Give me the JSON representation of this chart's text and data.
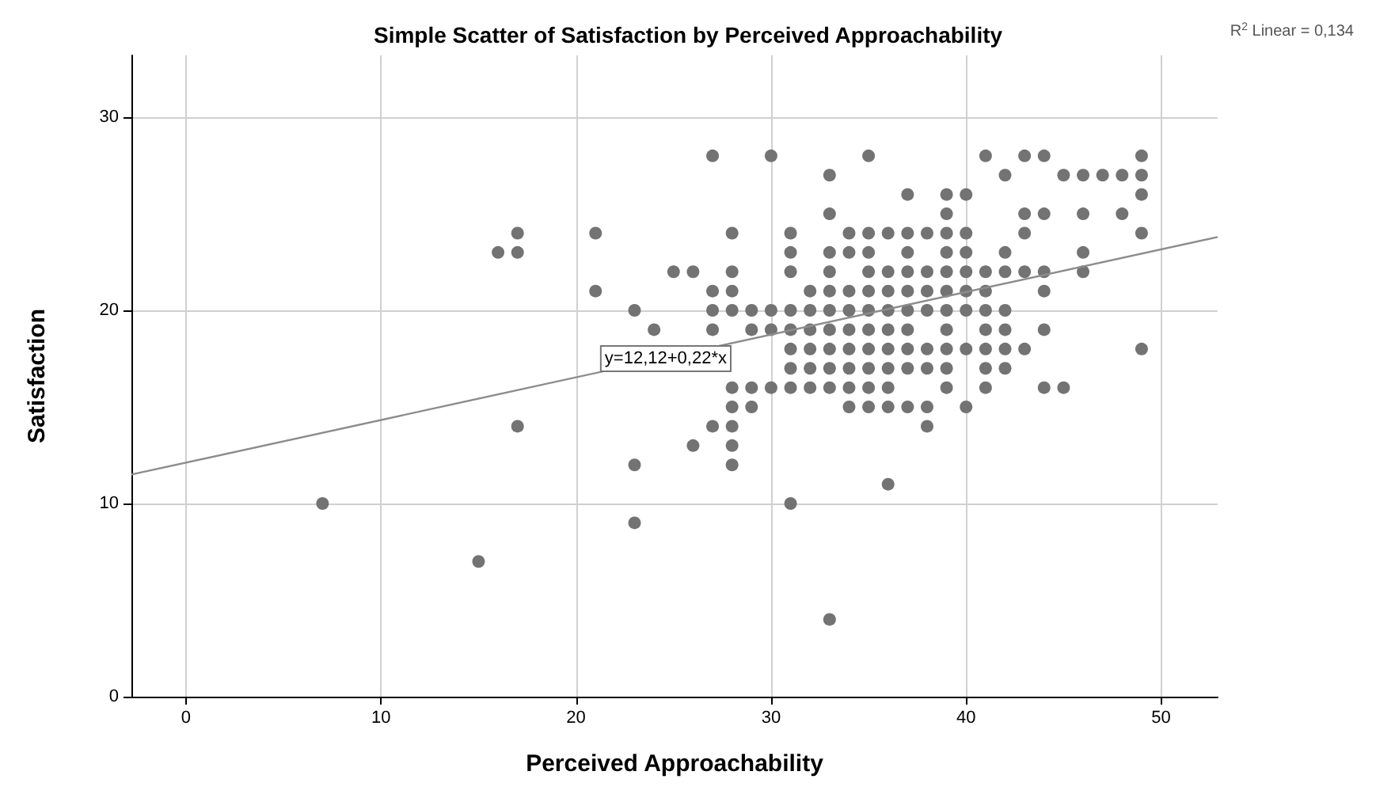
{
  "chart_data": {
    "type": "scatter",
    "title": "Simple Scatter of Satisfaction by Perceived Approachability",
    "xlabel": "Perceived Approachability",
    "ylabel": "Satisfaction",
    "xlim": [
      -2.8,
      52.9
    ],
    "xticks": [
      0,
      10,
      20,
      30,
      40,
      50
    ],
    "ylim": [
      0,
      33.2
    ],
    "yticks": [
      0,
      10,
      20,
      30
    ],
    "grid": true,
    "marker": "circle",
    "series": [
      {
        "type": "scatter",
        "color": "#737373",
        "x": [
          7,
          15,
          16,
          17,
          17,
          17,
          21,
          21,
          23,
          23,
          23,
          24,
          25,
          26,
          26,
          27,
          27,
          27,
          27,
          27,
          28,
          28,
          28,
          28,
          28,
          28,
          28,
          28,
          28,
          29,
          29,
          29,
          29,
          30,
          30,
          30,
          30,
          31,
          31,
          31,
          31,
          31,
          31,
          31,
          31,
          31,
          32,
          32,
          32,
          32,
          32,
          32,
          33,
          33,
          33,
          33,
          33,
          33,
          33,
          33,
          33,
          33,
          33,
          34,
          34,
          34,
          34,
          34,
          34,
          34,
          34,
          34,
          35,
          35,
          35,
          35,
          35,
          35,
          35,
          35,
          35,
          35,
          35,
          36,
          36,
          36,
          36,
          36,
          36,
          36,
          36,
          36,
          36,
          37,
          37,
          37,
          37,
          37,
          37,
          37,
          37,
          37,
          37,
          38,
          38,
          38,
          38,
          38,
          38,
          38,
          38,
          39,
          39,
          39,
          39,
          39,
          39,
          39,
          39,
          39,
          39,
          39,
          40,
          40,
          40,
          40,
          40,
          40,
          40,
          40,
          41,
          41,
          41,
          41,
          41,
          41,
          41,
          41,
          42,
          42,
          42,
          42,
          42,
          42,
          42,
          43,
          43,
          43,
          43,
          43,
          44,
          44,
          44,
          44,
          44,
          44,
          45,
          45,
          46,
          46,
          46,
          46,
          47,
          48,
          48,
          49,
          49,
          49,
          49,
          49
        ],
        "values": [
          10,
          7,
          23,
          24,
          23,
          14,
          24,
          21,
          20,
          12,
          9,
          19,
          22,
          22,
          13,
          28,
          21,
          20,
          19,
          14,
          24,
          22,
          21,
          20,
          16,
          15,
          14,
          13,
          12,
          20,
          19,
          16,
          15,
          28,
          20,
          19,
          16,
          24,
          23,
          22,
          20,
          19,
          18,
          17,
          16,
          10,
          21,
          20,
          19,
          18,
          17,
          16,
          27,
          25,
          23,
          22,
          21,
          20,
          19,
          18,
          17,
          16,
          4,
          24,
          23,
          21,
          20,
          19,
          18,
          17,
          16,
          15,
          28,
          24,
          23,
          22,
          21,
          20,
          19,
          18,
          17,
          16,
          15,
          24,
          22,
          21,
          20,
          19,
          18,
          17,
          16,
          15,
          11,
          26,
          24,
          23,
          22,
          21,
          20,
          19,
          18,
          17,
          15,
          24,
          22,
          21,
          20,
          18,
          17,
          15,
          14,
          26,
          25,
          24,
          23,
          22,
          21,
          20,
          19,
          18,
          17,
          16,
          26,
          24,
          23,
          22,
          21,
          20,
          18,
          15,
          28,
          22,
          21,
          20,
          19,
          18,
          17,
          16,
          27,
          23,
          22,
          20,
          19,
          18,
          17,
          28,
          25,
          24,
          22,
          18,
          28,
          25,
          22,
          21,
          19,
          16,
          27,
          16,
          27,
          25,
          23,
          22,
          27,
          27,
          25,
          28,
          27,
          26,
          24,
          18
        ]
      },
      {
        "type": "line",
        "color": "#8c8c8c",
        "marker": "none",
        "x": [
          -2.8,
          52.9
        ],
        "values": [
          11.5,
          23.8
        ]
      }
    ],
    "annotations": [
      {
        "text": "y=12,12+0,22*x",
        "x": 24.6,
        "y": 17.5
      },
      "R$^{2}$ Linear = 0,134"
    ]
  }
}
